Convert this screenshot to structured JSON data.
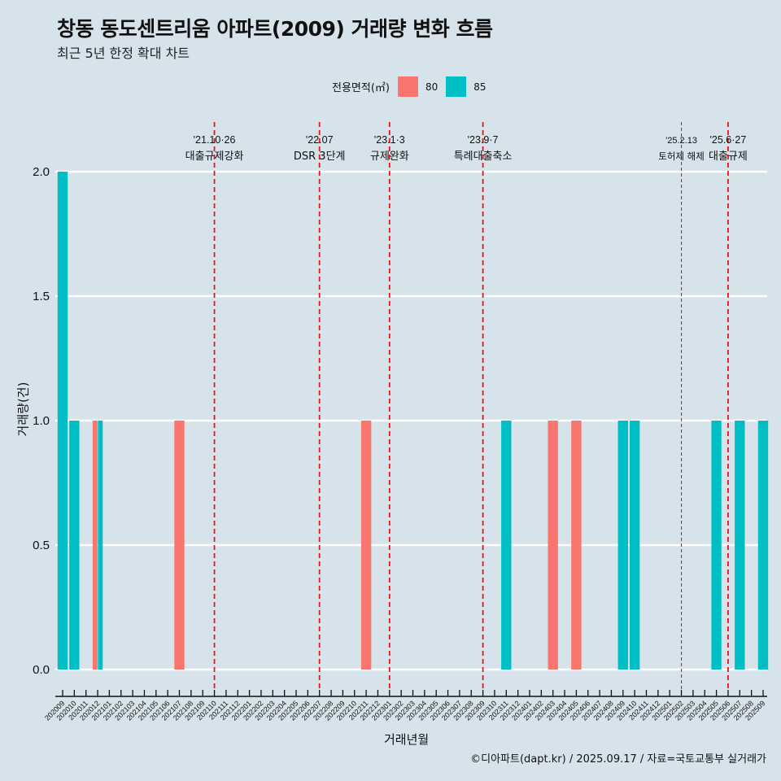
{
  "title": "창동 동도센트리움 아파트(2009) 거래량 변화 흐름",
  "subtitle": "최근 5년 한정 확대 차트",
  "caption": "©디아파트(dapt.kr) / 2025.09.17 / 자료=국토교통부 실거래가",
  "legend": {
    "title": "전용면적(㎡)",
    "items": [
      {
        "label": "80",
        "color": "#f8766d"
      },
      {
        "label": "85",
        "color": "#00bfc4"
      }
    ]
  },
  "chart_data": {
    "type": "bar",
    "title": "창동 동도센트리움 아파트(2009) 거래량 변화 흐름",
    "subtitle": "최근 5년 한정 확대 차트",
    "xlabel": "거래년월",
    "ylabel": "거래량(건)",
    "ylim": [
      0,
      2
    ],
    "yticks": [
      "0.0",
      "0.5",
      "1.0",
      "1.5",
      "2.0"
    ],
    "grid": "horizontal",
    "legend_position": "top",
    "categories": [
      "202009",
      "202010",
      "202011",
      "202012",
      "202101",
      "202102",
      "202103",
      "202104",
      "202105",
      "202106",
      "202107",
      "202108",
      "202109",
      "202110",
      "202111",
      "202112",
      "202201",
      "202202",
      "202203",
      "202204",
      "202205",
      "202206",
      "202207",
      "202208",
      "202209",
      "202210",
      "202211",
      "202212",
      "202301",
      "202302",
      "202303",
      "202304",
      "202305",
      "202306",
      "202307",
      "202308",
      "202309",
      "202310",
      "202311",
      "202312",
      "202401",
      "202402",
      "202403",
      "202404",
      "202405",
      "202406",
      "202407",
      "202408",
      "202409",
      "202410",
      "202411",
      "202412",
      "202501",
      "202502",
      "202503",
      "202504",
      "202505",
      "202506",
      "202507",
      "202508",
      "202509"
    ],
    "series": [
      {
        "name": "80",
        "color": "#f8766d",
        "points": [
          {
            "x": "202012",
            "y": 1
          },
          {
            "x": "202107",
            "y": 1
          },
          {
            "x": "202211",
            "y": 1
          },
          {
            "x": "202403",
            "y": 1
          },
          {
            "x": "202405",
            "y": 1
          }
        ]
      },
      {
        "name": "85",
        "color": "#00bfc4",
        "points": [
          {
            "x": "202009",
            "y": 2
          },
          {
            "x": "202010",
            "y": 1
          },
          {
            "x": "202012",
            "y": 1
          },
          {
            "x": "202311",
            "y": 1
          },
          {
            "x": "202409",
            "y": 1
          },
          {
            "x": "202410",
            "y": 1
          },
          {
            "x": "202505",
            "y": 1
          },
          {
            "x": "202507",
            "y": 1
          },
          {
            "x": "202509",
            "y": 1
          }
        ]
      }
    ],
    "annotations": [
      {
        "x": "202110",
        "line1": "'21.10·26",
        "line2": "대출규제강화",
        "style": "bold"
      },
      {
        "x": "202207",
        "line1": "'22.07",
        "line2": "DSR 3단계",
        "style": "bold"
      },
      {
        "x": "202301",
        "line1": "'23.1·3",
        "line2": "규제완화",
        "style": "bold"
      },
      {
        "x": "202309",
        "line1": "'23.9·7",
        "line2": "특례대출축소",
        "style": "bold"
      },
      {
        "x": "202502",
        "line1": "'25.2.13",
        "line2": "토허제 해제",
        "style": "thin"
      },
      {
        "x": "202506",
        "line1": "'25.6·27",
        "line2": "대출규제",
        "style": "bold"
      }
    ]
  }
}
